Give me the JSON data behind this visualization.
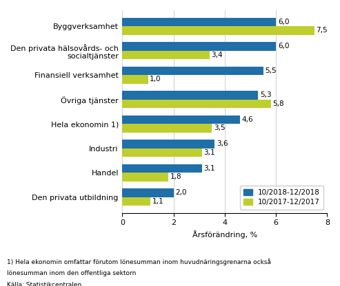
{
  "categories": [
    "Byggverksamhet",
    "Den privata hälsovårds- och\nsocialtjänster",
    "Finansiell verksamhet",
    "Övriga tjänster",
    "Hela ekonomin 1)",
    "Industri",
    "Handel",
    "Den privata utbildning"
  ],
  "values_blue": [
    6.0,
    6.0,
    5.5,
    5.3,
    4.6,
    3.6,
    3.1,
    2.0
  ],
  "values_green": [
    7.5,
    3.4,
    1.0,
    5.8,
    3.5,
    3.1,
    1.8,
    1.1
  ],
  "color_blue": "#1F6FA8",
  "color_green": "#BECE2E",
  "xlabel": "Årsförändring, %",
  "xlim": [
    0,
    8
  ],
  "xticks": [
    0,
    2,
    4,
    6,
    8
  ],
  "legend_labels": [
    "10/2018-12/2018",
    "10/2017-12/2017"
  ],
  "footnote1": "1) Hela ekonomin omfattar förutom lönesumman inom huvudnäringsgrenarna också",
  "footnote2": "lönesumman inom den offentliga sektorn",
  "source": "Källa: Statistikcentralen",
  "bar_height": 0.35,
  "label_fontsize": 8.0,
  "tick_fontsize": 8.0,
  "annotation_fontsize": 7.5
}
